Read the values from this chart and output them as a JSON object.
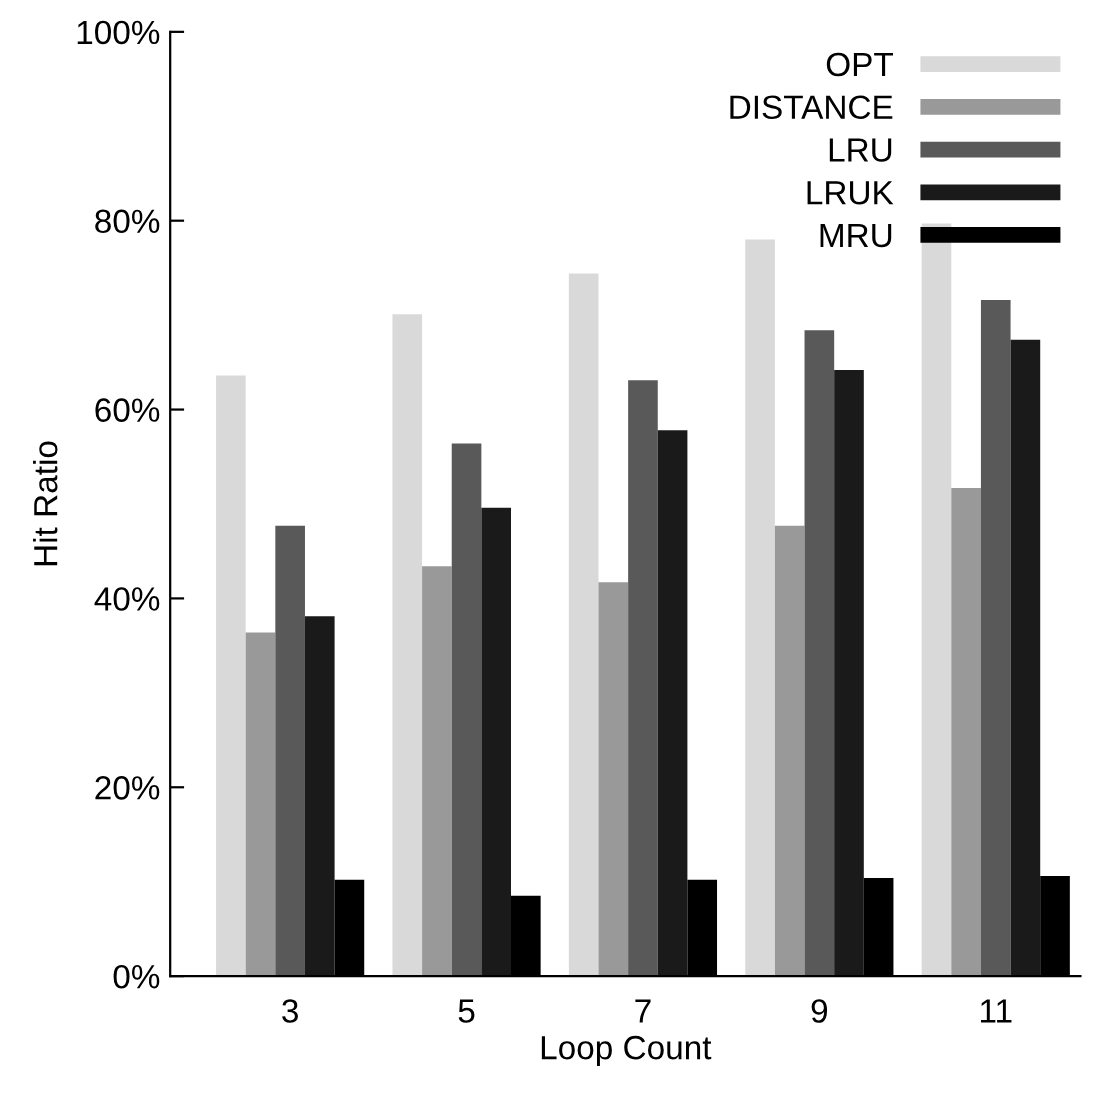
{
  "chart_data": {
    "type": "bar",
    "xlabel": "Loop Count",
    "ylabel": "Hit Ratio",
    "categories": [
      "3",
      "5",
      "7",
      "9",
      "11"
    ],
    "series": [
      {
        "name": "OPT",
        "color": "#d9d9d9",
        "values": [
          63.6,
          70.1,
          74.4,
          78.0,
          79.7
        ]
      },
      {
        "name": "DISTANCE",
        "color": "#999999",
        "values": [
          36.4,
          43.4,
          41.7,
          47.7,
          51.7
        ]
      },
      {
        "name": "LRU",
        "color": "#595959",
        "values": [
          47.7,
          56.4,
          63.1,
          68.4,
          71.6
        ]
      },
      {
        "name": "LRUK",
        "color": "#1a1a1a",
        "values": [
          38.1,
          49.6,
          57.8,
          64.2,
          67.4
        ]
      },
      {
        "name": "MRU",
        "color": "#000000",
        "values": [
          10.2,
          8.5,
          10.2,
          10.4,
          10.6
        ]
      }
    ],
    "ylim": [
      0,
      100
    ],
    "yticks": [
      {
        "value": 0,
        "label": "0%"
      },
      {
        "value": 20,
        "label": "20%"
      },
      {
        "value": 40,
        "label": "40%"
      },
      {
        "value": 60,
        "label": "60%"
      },
      {
        "value": 80,
        "label": "80%"
      },
      {
        "value": 100,
        "label": "100%"
      }
    ],
    "grid": false,
    "legend": "top right"
  }
}
